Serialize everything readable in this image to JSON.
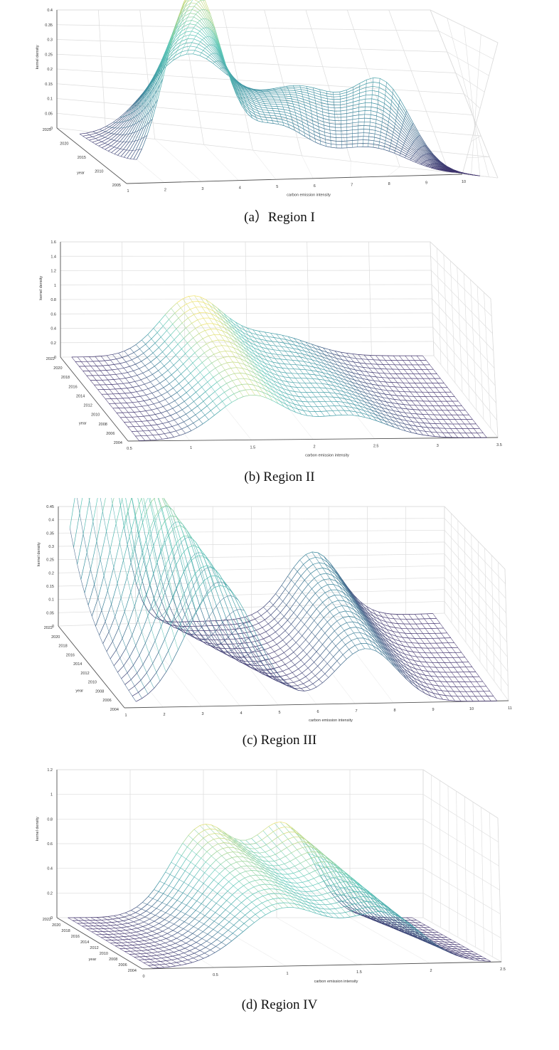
{
  "charts": [
    {
      "caption": "(a）Region I",
      "chart_data": {
        "type": "surface",
        "xlabel": "carbon emission intensity",
        "ylabel": "year",
        "zlabel": "kernel density",
        "xticks": [
          "1",
          "2",
          "3",
          "4",
          "5",
          "6",
          "7",
          "8",
          "9",
          "10"
        ],
        "yticks": [
          "2005",
          "2010",
          "2015",
          "2020",
          "2025"
        ],
        "zticks": [
          "0",
          "0.05",
          "0.1",
          "0.15",
          "0.2",
          "0.25",
          "0.3",
          "0.35",
          "0.4"
        ],
        "xlim": [
          1,
          10
        ],
        "ylim": [
          2004,
          2025
        ],
        "zlim": [
          0,
          0.4
        ],
        "grid": true,
        "colormap": [
          "#3e2f6b",
          "#3a8fa0",
          "#5cc8b8",
          "#f2e26a"
        ],
        "density_curves": {
          "years": [
            2004,
            2022
          ],
          "peaks_start": [
            {
              "x": 2.8,
              "height": 0.33,
              "width": 0.75
            },
            {
              "x": 5.0,
              "height": 0.09,
              "width": 0.9
            },
            {
              "x": 7.5,
              "height": 0.05,
              "width": 1.0
            }
          ],
          "peaks_end": [
            {
              "x": 3.6,
              "height": 0.16,
              "width": 0.9
            },
            {
              "x": 6.0,
              "height": 0.12,
              "width": 0.9
            },
            {
              "x": 7.7,
              "height": 0.13,
              "width": 0.6
            }
          ]
        }
      }
    },
    {
      "caption": "(b) Region II",
      "chart_data": {
        "type": "surface",
        "xlabel": "carbon emission intensity",
        "ylabel": "year",
        "zlabel": "kernel density",
        "xticks": [
          "0.5",
          "1",
          "1.5",
          "2",
          "2.5",
          "3",
          "3.5"
        ],
        "yticks": [
          "2004",
          "2006",
          "2008",
          "2010",
          "2012",
          "2014",
          "2016",
          "2018",
          "2020",
          "2022"
        ],
        "zticks": [
          "0",
          "0.2",
          "0.4",
          "0.6",
          "0.8",
          "1",
          "1.2",
          "1.4",
          "1.6"
        ],
        "xlim": [
          0.5,
          3.5
        ],
        "ylim": [
          2004,
          2022
        ],
        "zlim": [
          0,
          1.6
        ],
        "grid": true,
        "colormap": [
          "#3e2f6b",
          "#3a8fa0",
          "#5cc8b8",
          "#f2e26a"
        ],
        "density_curves": {
          "years": [
            2004,
            2022
          ],
          "peaks_start": [
            {
              "x": 1.5,
              "height": 1.05,
              "width": 0.28
            },
            {
              "x": 2.3,
              "height": 0.55,
              "width": 0.3
            }
          ],
          "peaks_end": [
            {
              "x": 1.55,
              "height": 1.4,
              "width": 0.25
            },
            {
              "x": 2.2,
              "height": 0.5,
              "width": 0.3
            }
          ]
        }
      }
    },
    {
      "caption": "(c) Region III",
      "chart_data": {
        "type": "surface",
        "xlabel": "carbon emission intensity",
        "ylabel": "year",
        "zlabel": "kernel density",
        "xticks": [
          "1",
          "2",
          "3",
          "4",
          "5",
          "6",
          "7",
          "8",
          "9",
          "10",
          "11"
        ],
        "yticks": [
          "2004",
          "2006",
          "2008",
          "2010",
          "2012",
          "2014",
          "2016",
          "2018",
          "2020",
          "2022"
        ],
        "zticks": [
          "0",
          "0.05",
          "0.1",
          "0.15",
          "0.2",
          "0.25",
          "0.3",
          "0.35",
          "0.4",
          "0.45"
        ],
        "xlim": [
          1,
          11
        ],
        "ylim": [
          2004,
          2022
        ],
        "zlim": [
          0,
          0.45
        ],
        "grid": true,
        "colormap": [
          "#3e2f6b",
          "#3a8fa0",
          "#5cc8b8",
          "#f2e26a"
        ],
        "density_curves": {
          "years": [
            2004,
            2022
          ],
          "peaks_start": [
            {
              "x": 3.5,
              "height": 0.22,
              "width": 0.9
            },
            {
              "x": 7.3,
              "height": 0.1,
              "width": 0.8
            }
          ],
          "peaks_end": [
            {
              "x": 2.0,
              "height": 0.4,
              "width": 0.55
            },
            {
              "x": 7.6,
              "height": 0.12,
              "width": 0.7
            }
          ]
        }
      }
    },
    {
      "caption": "(d) Region IV",
      "chart_data": {
        "type": "surface",
        "xlabel": "carbon emission intensity",
        "ylabel": "year",
        "zlabel": "kernel density",
        "xticks": [
          "0",
          "0.5",
          "1",
          "1.5",
          "2",
          "2.5"
        ],
        "yticks": [
          "2004",
          "2006",
          "2008",
          "2010",
          "2012",
          "2014",
          "2016",
          "2018",
          "2020",
          "2022"
        ],
        "zticks": [
          "0",
          "0.2",
          "0.4",
          "0.6",
          "0.8",
          "1",
          "1.2"
        ],
        "xlim": [
          0,
          2.5
        ],
        "ylim": [
          2004,
          2022
        ],
        "zlim": [
          0,
          1.2
        ],
        "grid": true,
        "colormap": [
          "#3e2f6b",
          "#3a8fa0",
          "#5cc8b8",
          "#f2e26a"
        ],
        "density_curves": {
          "years": [
            2004,
            2022
          ],
          "peaks_start": [
            {
              "x": 1.0,
              "height": 0.6,
              "width": 0.3
            },
            {
              "x": 1.7,
              "height": 0.5,
              "width": 0.25
            }
          ],
          "peaks_end": [
            {
              "x": 1.0,
              "height": 0.95,
              "width": 0.22
            },
            {
              "x": 1.55,
              "height": 0.95,
              "width": 0.2
            }
          ]
        }
      }
    }
  ]
}
